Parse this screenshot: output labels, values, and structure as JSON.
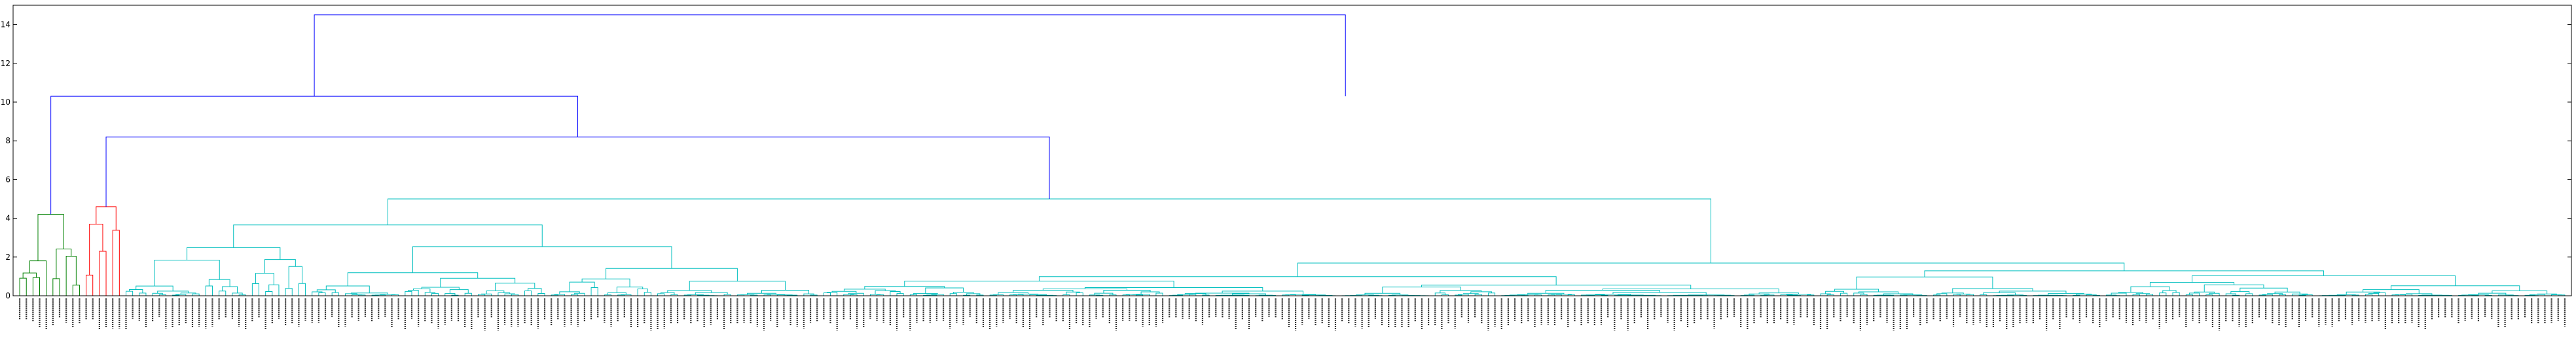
{
  "chart_data": {
    "type": "dendrogram",
    "title": "",
    "xlabel": "",
    "ylabel": "",
    "ylim": [
      0,
      15
    ],
    "y_ticks": [
      0,
      2,
      4,
      6,
      8,
      10,
      12,
      14
    ],
    "y_tick_labels": [
      "0",
      "2",
      "4",
      "6",
      "8",
      "10",
      "12",
      "14"
    ],
    "grid": false,
    "leaf_count": 384,
    "colors": {
      "above_threshold": "#0000ff",
      "cluster_green": "#008000",
      "cluster_red": "#ff0000",
      "cluster_cyan": "#00bfbf",
      "axes": "#000000"
    },
    "top_merges": [
      {
        "height": 14.5,
        "color": "above_threshold"
      },
      {
        "height": 10.3,
        "color": "above_threshold"
      },
      {
        "height": 8.2,
        "color": "above_threshold"
      },
      {
        "height": 5.0,
        "color": "cluster_cyan"
      }
    ],
    "clusters": [
      {
        "color": "cluster_green",
        "merge_height": 4.2,
        "leaves": 10
      },
      {
        "color": "cluster_red",
        "merge_height": 4.6,
        "leaves": 6
      },
      {
        "color": "cluster_cyan",
        "merge_height": 5.0,
        "leaves": 368
      }
    ]
  }
}
